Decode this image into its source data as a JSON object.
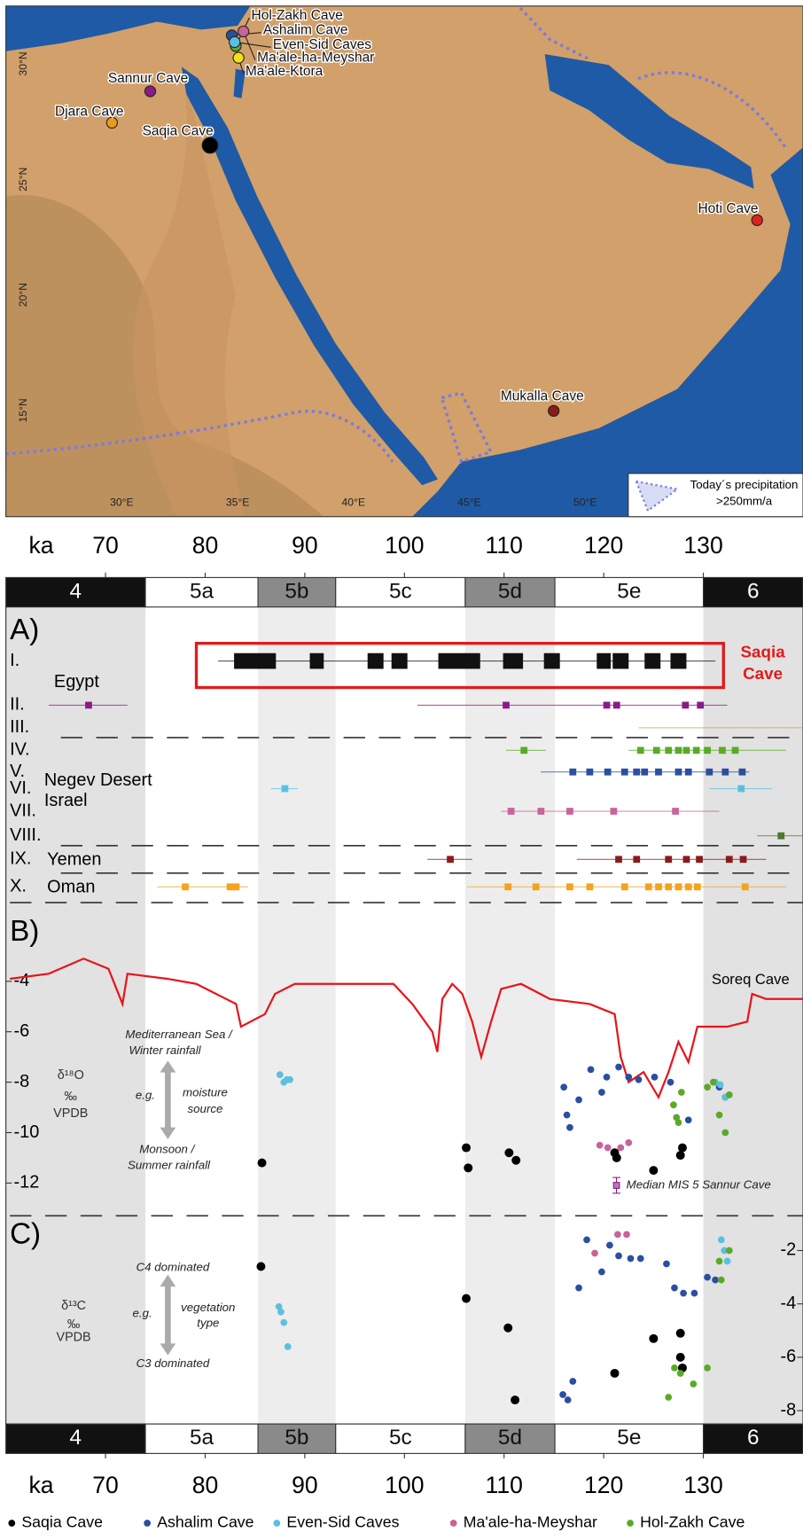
{
  "chart_data": [
    {
      "type": "map",
      "xlim": [
        25.0,
        59.4
      ],
      "ylim": [
        10.4,
        32.5
      ],
      "xticks": [
        {
          "value": 30,
          "label": "30°E"
        },
        {
          "value": 35,
          "label": "35°E"
        },
        {
          "value": 40,
          "label": "40°E"
        },
        {
          "value": 45,
          "label": "45°E"
        },
        {
          "value": 50,
          "label": "50°E"
        }
      ],
      "yticks": [
        {
          "value": 30,
          "label": "30°N"
        },
        {
          "value": 25,
          "label": "25°N"
        },
        {
          "value": 20,
          "label": "20°N"
        },
        {
          "value": 15,
          "label": "15°N"
        }
      ],
      "sites": [
        {
          "name": "Hol-Zakh Cave",
          "lon": 34.92,
          "lat": 30.77,
          "color": "#5aaa28"
        },
        {
          "name": "Ashalim Cave",
          "lon": 34.75,
          "lat": 31.23,
          "color": "#2a4fa0"
        },
        {
          "name": "Even-Sid Caves",
          "lon": 34.87,
          "lat": 30.94,
          "color": "#5bc0e0"
        },
        {
          "name": "Ma'ale-ha-Meyshar",
          "lon": 35.25,
          "lat": 31.4,
          "color": "#c8649a"
        },
        {
          "name": "Ma'ale-Ktora",
          "lon": 35.04,
          "lat": 30.26,
          "color": "#f5e016"
        },
        {
          "name": "Sannur Cave",
          "lon": 31.23,
          "lat": 28.81,
          "color": "#8b1a89"
        },
        {
          "name": "Djara Cave",
          "lon": 29.58,
          "lat": 27.45,
          "color": "#e89a1a"
        },
        {
          "name": "Saqia Cave",
          "lon": 33.81,
          "lat": 26.47,
          "color": "#000000"
        },
        {
          "name": "Hoti Cave",
          "lon": 57.42,
          "lat": 23.23,
          "color": "#e02020"
        },
        {
          "name": "Mukalla Cave",
          "lon": 48.64,
          "lat": 14.98,
          "color": "#8b1a1a"
        }
      ],
      "legend": [
        "Today´s precipitation",
        ">250mm/a"
      ]
    },
    {
      "type": "timeline",
      "xlabel": "ka",
      "xlim": [
        60,
        140
      ],
      "xticks": [
        70,
        80,
        90,
        100,
        110,
        120,
        130
      ],
      "stages": [
        {
          "name": "4",
          "start": 60,
          "end": 74,
          "color": "#111111"
        },
        {
          "name": "5a",
          "start": 74,
          "end": 85.3,
          "color": "#ffffff"
        },
        {
          "name": "5b",
          "start": 85.3,
          "end": 93.1,
          "color": "#8a8a8a"
        },
        {
          "name": "5c",
          "start": 93.1,
          "end": 106.1,
          "color": "#ffffff"
        },
        {
          "name": "5d",
          "start": 106.1,
          "end": 115.1,
          "color": "#8a8a8a"
        },
        {
          "name": "5e",
          "start": 115.1,
          "end": 130,
          "color": "#ffffff"
        },
        {
          "name": "6",
          "start": 130,
          "end": 140,
          "color": "#111111"
        }
      ]
    },
    {
      "type": "range",
      "label": "A)",
      "annotation": [
        "Saqia",
        "Cave"
      ],
      "groups": [
        "Egypt",
        "Negev Desert",
        "Israel",
        "Yemen",
        "Oman"
      ],
      "rows": [
        {
          "name": "I.",
          "color": "#111111",
          "ranges": [
            [
              81.3,
              131.2
            ]
          ],
          "ages": [
            85.0,
            91.2,
            97.1,
            99.5,
            105.5,
            110.9,
            114.8,
            120.0,
            121.7,
            124.9,
            127.5
          ],
          "errors": [
            2.1,
            0.7,
            0.8,
            0.8,
            2.1,
            1.0,
            0.8,
            0.7,
            0.8,
            0.8,
            0.8
          ]
        },
        {
          "name": "II.",
          "color": "#8b1a89",
          "ranges": [
            [
              64.3,
              72.2
            ],
            [
              101.3,
              132.4
            ]
          ],
          "ages": [
            68.3,
            110.2,
            120.3,
            121.3,
            128.2,
            129.7
          ]
        },
        {
          "name": "III.",
          "color": "#b8a040",
          "ranges": [
            [
              123.5,
              140.0
            ]
          ],
          "ages": []
        },
        {
          "name": "IV.",
          "color": "#5aaa28",
          "ranges": [
            [
              110.2,
              114.2
            ],
            [
              122.5,
              138.3
            ]
          ],
          "ages": [
            112.0,
            123.7,
            125.3,
            126.5,
            127.5,
            128.3,
            129.3,
            130.4,
            131.9,
            133.2
          ]
        },
        {
          "name": "V.",
          "color": "#2a4fa0",
          "ranges": [
            [
              113.7,
              134.6
            ]
          ],
          "ages": [
            116.9,
            118.6,
            120.4,
            122.1,
            123.3,
            124.1,
            125.5,
            127.5,
            128.5,
            130.6,
            132.2,
            133.9
          ]
        },
        {
          "name": "VI.",
          "color": "#5bc0e0",
          "ranges": [
            [
              86.6,
              89.3
            ],
            [
              130.6,
              136.9
            ]
          ],
          "ages": [
            88.0,
            133.8
          ]
        },
        {
          "name": "VII.",
          "color": "#c8649a",
          "ranges": [
            [
              109.7,
              131.6
            ]
          ],
          "ages": [
            110.7,
            113.7,
            116.6,
            121.0,
            127.2
          ]
        },
        {
          "name": "VIII.",
          "color": "#4a7a2a",
          "ranges": [
            [
              135.4,
              140.0
            ]
          ],
          "ages": [
            137.8
          ]
        },
        {
          "name": "IX.",
          "color": "#8b1a1a",
          "ranges": [
            [
              102.3,
              106.8
            ],
            [
              117.3,
              136.3
            ]
          ],
          "ages": [
            104.6,
            121.5,
            123.3,
            126.5,
            128.3,
            129.6,
            132.6,
            134.0
          ]
        },
        {
          "name": "X.",
          "color": "#f5a31a",
          "ranges": [
            [
              75.2,
              84.3
            ],
            [
              106.3,
              138.3
            ]
          ],
          "ages": [
            78.0,
            82.5,
            83.1,
            110.4,
            113.2,
            116.6,
            118.6,
            122.1,
            124.5,
            125.5,
            126.5,
            127.5,
            128.5,
            129.4,
            134.2
          ]
        }
      ]
    },
    {
      "type": "line_scatter",
      "label": "B)",
      "ylabel": [
        "δ¹⁸O",
        "‰",
        "VPDB"
      ],
      "ylim": [
        -13.3,
        -1.5
      ],
      "yticks": [
        -4,
        -6,
        -8,
        -10,
        -12
      ],
      "annotations": [
        "Mediterranean Sea /",
        "Winter rainfall",
        "e.g.",
        "moisture",
        "source",
        "Monsoon /",
        "Summer rainfall",
        "Median MIS 5 Sannur Cave"
      ],
      "series": [
        {
          "name": "Soreq Cave",
          "color": "#e8141a",
          "x": [
            60.4,
            64.3,
            67.8,
            70.3,
            71.7,
            72.2,
            76.2,
            79.1,
            83.1,
            83.6,
            86.0,
            87.0,
            89.0,
            93.9,
            98.9,
            100.8,
            102.8,
            103.3,
            103.8,
            104.8,
            105.8,
            106.8,
            107.7,
            108.7,
            109.7,
            111.7,
            114.6,
            118.6,
            121.1,
            121.7,
            122.5,
            124.0,
            125.5,
            126.5,
            127.5,
            128.5,
            129.4,
            132.4,
            134.4,
            134.9,
            136.3,
            140.0
          ],
          "values": [
            -3.9,
            -3.7,
            -3.1,
            -3.5,
            -4.9,
            -3.7,
            -3.9,
            -4.1,
            -4.9,
            -5.8,
            -5.3,
            -4.5,
            -4.1,
            -4.1,
            -4.1,
            -4.9,
            -6.0,
            -6.8,
            -4.7,
            -4.1,
            -4.5,
            -5.6,
            -7.0,
            -5.6,
            -4.3,
            -4.1,
            -4.7,
            -4.9,
            -5.3,
            -7.0,
            -8.0,
            -7.6,
            -8.6,
            -7.6,
            -6.4,
            -7.2,
            -5.8,
            -5.8,
            -5.6,
            -4.5,
            -4.7,
            -4.7
          ]
        },
        {
          "name": "Saqia Cave",
          "color": "#000000",
          "x": [
            85.7,
            106.2,
            106.4,
            110.5,
            111.2,
            121.1,
            121.3,
            125.0,
            127.7,
            127.9
          ],
          "values": [
            -11.2,
            -10.6,
            -11.4,
            -10.8,
            -11.1,
            -10.8,
            -11.0,
            -11.5,
            -10.9,
            -10.6
          ]
        },
        {
          "name": "Ashalim Cave",
          "color": "#2a4fa0",
          "x": [
            116.0,
            116.3,
            116.6,
            117.5,
            118.7,
            119.8,
            120.3,
            121.5,
            122.5,
            123.5,
            125.1,
            126.7,
            128.5,
            131.6,
            132.2
          ],
          "values": [
            -8.2,
            -9.3,
            -9.8,
            -8.7,
            -7.5,
            -8.4,
            -7.8,
            -7.4,
            -7.8,
            -7.9,
            -7.8,
            -8.0,
            -9.5,
            -8.2,
            -8.6
          ]
        },
        {
          "name": "Even-Sid Caves",
          "color": "#5bc0e0",
          "x": [
            87.5,
            87.9,
            88.2,
            88.5,
            131.2,
            131.7,
            132.2
          ],
          "values": [
            -7.7,
            -8.0,
            -7.9,
            -7.9,
            -8.0,
            -8.1,
            -8.6
          ]
        },
        {
          "name": "Ma'ale-ha-Meyshar",
          "color": "#c8649a",
          "x": [
            119.6,
            120.4,
            121.7,
            122.5
          ],
          "values": [
            -10.5,
            -10.6,
            -10.6,
            -10.4
          ]
        },
        {
          "name": "Hol-Zakh Cave",
          "color": "#5aaa28",
          "x": [
            127.0,
            127.3,
            127.5,
            127.8,
            130.4,
            131.0,
            131.6,
            132.2,
            132.6
          ],
          "values": [
            -8.9,
            -9.4,
            -9.6,
            -8.4,
            -8.2,
            -8.0,
            -9.3,
            -10.0,
            -8.5
          ]
        }
      ]
    },
    {
      "type": "scatter",
      "label": "C)",
      "ylabel": [
        "δ¹³C",
        "‰",
        "VPDB"
      ],
      "ylim": [
        -8.5,
        -0.7
      ],
      "yticks": [
        -2,
        -4,
        -6,
        -8
      ],
      "annotations": [
        "C4 dominated",
        "e.g.",
        "vegetation",
        "type",
        "C3 dominated"
      ],
      "series": [
        {
          "name": "Saqia Cave",
          "color": "#000000",
          "x": [
            85.6,
            106.2,
            110.4,
            111.1,
            121.1,
            125.0,
            127.7,
            127.7,
            127.9
          ],
          "values": [
            -2.6,
            -3.8,
            -4.9,
            -7.6,
            -6.6,
            -5.3,
            -5.1,
            -6.0,
            -6.4
          ]
        },
        {
          "name": "Ashalim Cave",
          "color": "#2a4fa0",
          "x": [
            115.9,
            116.4,
            116.9,
            117.5,
            118.3,
            119.8,
            120.6,
            121.5,
            122.7,
            123.7,
            126.3,
            127.1,
            128.0,
            129.1,
            130.4,
            131.2
          ],
          "values": [
            -7.4,
            -7.6,
            -6.9,
            -3.4,
            -1.6,
            -2.8,
            -1.8,
            -2.2,
            -2.3,
            -2.3,
            -2.5,
            -3.4,
            -3.6,
            -3.6,
            -3.0,
            -3.1
          ]
        },
        {
          "name": "Even-Sid Caves",
          "color": "#5bc0e0",
          "x": [
            87.4,
            87.6,
            87.9,
            88.3,
            131.8,
            132.1,
            132.4
          ],
          "values": [
            -4.1,
            -4.3,
            -4.7,
            -5.6,
            -1.6,
            -2.0,
            -2.4
          ]
        },
        {
          "name": "Ma'ale-ha-Meyshar",
          "color": "#c8649a",
          "x": [
            119.1,
            121.4,
            122.3
          ],
          "values": [
            -2.1,
            -1.4,
            -1.4
          ]
        },
        {
          "name": "Hol-Zakh Cave",
          "color": "#5aaa28",
          "x": [
            126.5,
            127.1,
            127.7,
            129.0,
            130.4,
            131.6,
            131.8,
            132.6
          ],
          "values": [
            -7.5,
            -6.4,
            -6.6,
            -7.0,
            -6.4,
            -2.4,
            -3.1,
            -2.0
          ]
        }
      ]
    }
  ]
}
